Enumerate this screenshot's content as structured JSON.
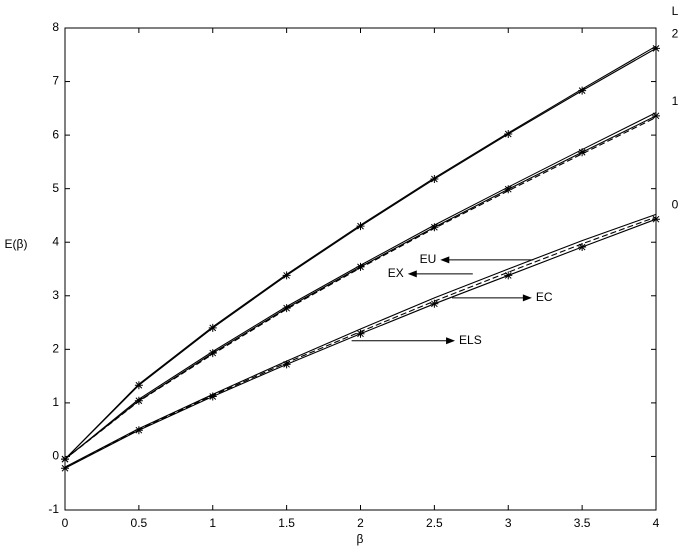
{
  "chart_data": {
    "type": "line",
    "xlabel": "β",
    "ylabel": "E(β)",
    "x": [
      0,
      0.5,
      1,
      1.5,
      2,
      2.5,
      3,
      3.5,
      4
    ],
    "xlim": [
      0,
      4
    ],
    "xticks": [
      0,
      0.5,
      1,
      1.5,
      2,
      2.5,
      3,
      3.5,
      4
    ],
    "ylim": [
      -1,
      8
    ],
    "yticks": [
      -1,
      0,
      1,
      2,
      3,
      4,
      5,
      6,
      7,
      8
    ],
    "curve_label_title": "L",
    "series": [
      {
        "label": "2",
        "color": "#000000",
        "style": "solid",
        "marker": "*",
        "values": [
          -0.05,
          1.33,
          2.4,
          3.38,
          4.3,
          5.18,
          6.02,
          6.83,
          7.62
        ]
      },
      {
        "color": "#000000",
        "style": "solid",
        "values": [
          -0.05,
          1.35,
          2.42,
          3.4,
          4.32,
          5.2,
          6.04,
          6.86,
          7.66
        ]
      },
      {
        "label": "1",
        "color": "#000000",
        "style": "solid",
        "marker": "*",
        "values": [
          -0.05,
          1.04,
          1.93,
          2.77,
          3.54,
          4.28,
          4.99,
          5.68,
          6.36
        ]
      },
      {
        "color": "#000000",
        "style": "solid",
        "values": [
          -0.05,
          1.07,
          1.96,
          2.8,
          3.57,
          4.32,
          5.03,
          5.73,
          6.42
        ]
      },
      {
        "color": "#000000",
        "style": "dashed",
        "values": [
          -0.05,
          1.03,
          1.91,
          2.75,
          3.52,
          4.26,
          4.96,
          5.65,
          6.33
        ]
      },
      {
        "label": "0",
        "color": "#000000",
        "style": "solid",
        "marker": "*",
        "values": [
          -0.22,
          0.49,
          1.12,
          1.72,
          2.29,
          2.85,
          3.38,
          3.91,
          4.43
        ]
      },
      {
        "color": "#000000",
        "style": "solid",
        "values": [
          -0.2,
          0.52,
          1.16,
          1.78,
          2.38,
          2.96,
          3.5,
          4.03,
          4.52
        ]
      },
      {
        "color": "#000000",
        "style": "dashed",
        "values": [
          -0.21,
          0.5,
          1.14,
          1.75,
          2.33,
          2.9,
          3.44,
          3.97,
          4.47
        ]
      }
    ],
    "annotations": [
      {
        "text": "EU",
        "y": 3.67,
        "arrow": [
          3.17,
          2.54
        ]
      },
      {
        "text": "EX",
        "y": 3.41,
        "arrow": [
          2.76,
          2.32
        ]
      },
      {
        "text": "EC",
        "y": 2.96,
        "arrow": [
          2.62,
          3.16
        ]
      },
      {
        "text": "ELS",
        "y": 2.16,
        "arrow": [
          1.94,
          2.64
        ]
      }
    ]
  }
}
